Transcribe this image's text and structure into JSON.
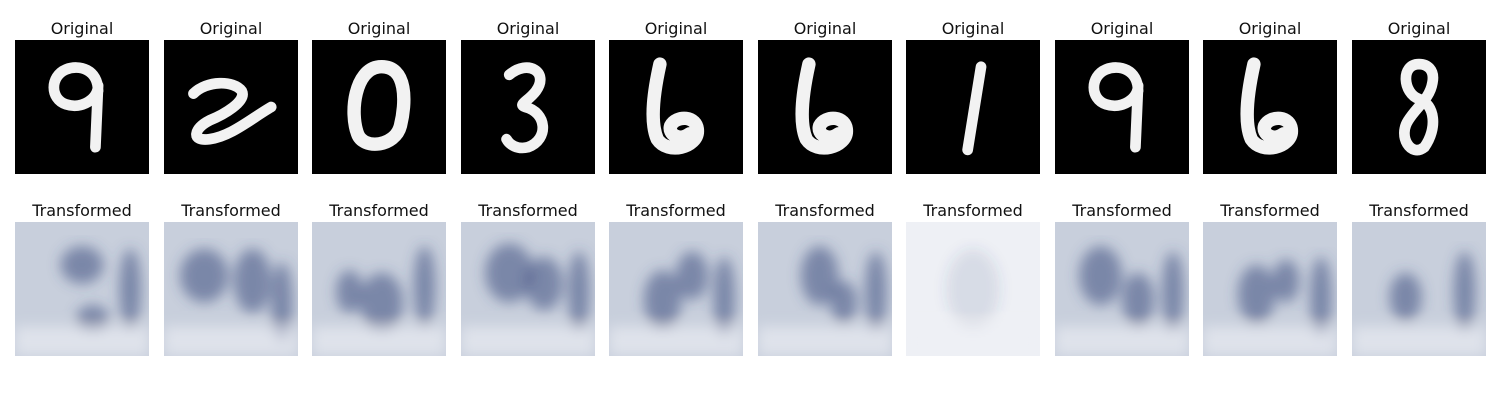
{
  "panels": {
    "original_title": "Original",
    "transformed_title": "Transformed"
  },
  "pairs": [
    {
      "digit": "9"
    },
    {
      "digit": "2"
    },
    {
      "digit": "0"
    },
    {
      "digit": "3"
    },
    {
      "digit": "6"
    },
    {
      "digit": "6"
    },
    {
      "digit": "1"
    },
    {
      "digit": "9"
    },
    {
      "digit": "6"
    },
    {
      "digit": "8"
    }
  ],
  "colors": {
    "original_background": "#000000",
    "original_stroke": "#f2f2f2",
    "transformed_base": "#c8cfdc",
    "transformed_dark_blue": "#3c4a7e",
    "transformed_light": "#eef0f5"
  }
}
